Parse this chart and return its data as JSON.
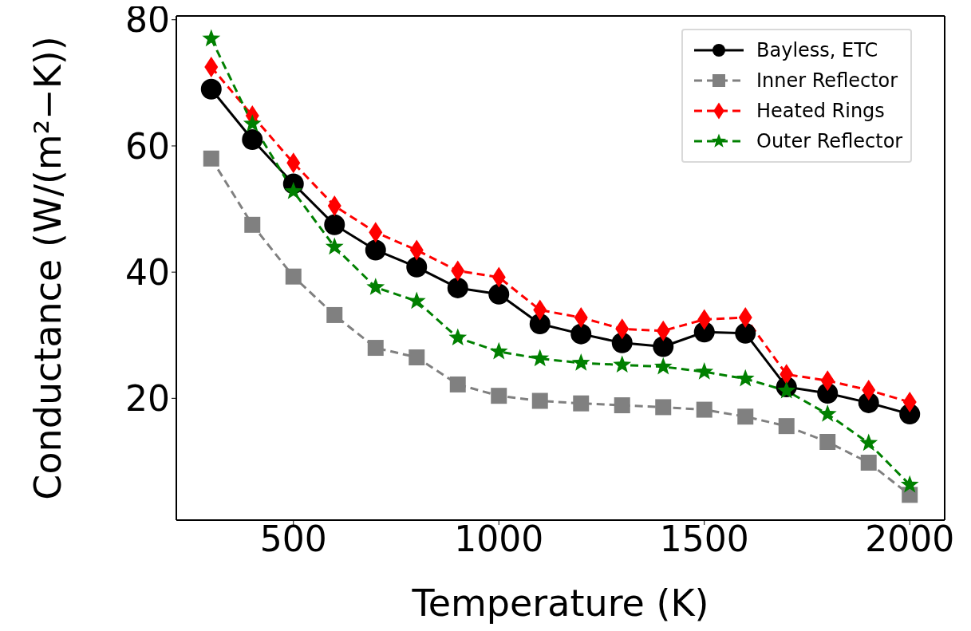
{
  "chart_data": {
    "type": "line",
    "xlabel": "Temperature (K)",
    "ylabel": "Conductance (W/(m²−K))",
    "x": [
      300,
      400,
      500,
      600,
      700,
      800,
      900,
      1000,
      1100,
      1200,
      1300,
      1400,
      1500,
      1600,
      1700,
      1800,
      1900,
      2000
    ],
    "series": [
      {
        "name": "Bayless, ETC",
        "color": "#000000",
        "marker": "circle",
        "line_style": "solid",
        "values": [
          69,
          61,
          54,
          47.5,
          43.5,
          40.8,
          37.5,
          36.5,
          31.8,
          30.2,
          28.8,
          28.2,
          30.5,
          30.3,
          21.8,
          20.8,
          19.3,
          17.5
        ]
      },
      {
        "name": "Inner Reflector",
        "color": "#808080",
        "marker": "square",
        "line_style": "dashed",
        "values": [
          58,
          47.5,
          39.3,
          33.2,
          28,
          26.5,
          22.2,
          20.4,
          19.6,
          19.2,
          18.9,
          18.6,
          18.2,
          17.1,
          15.6,
          13.1,
          9.8,
          4.7
        ]
      },
      {
        "name": "Heated Rings",
        "color": "#ff0000",
        "marker": "diamond",
        "line_style": "dashed",
        "values": [
          72.5,
          64.8,
          57.3,
          50.5,
          46.3,
          43.5,
          40.2,
          39.2,
          34,
          32.8,
          31,
          30.7,
          32.5,
          32.8,
          23.8,
          22.8,
          21.3,
          19.4
        ]
      },
      {
        "name": "Outer Reflector",
        "color": "#008000",
        "marker": "star",
        "line_style": "dashed",
        "values": [
          77,
          63.5,
          52.8,
          44,
          37.6,
          35.4,
          29.6,
          27.4,
          26.3,
          25.6,
          25.3,
          25,
          24.2,
          23.1,
          21.2,
          17.5,
          12.9,
          6.3
        ]
      }
    ],
    "xlim": [
      215,
      2085
    ],
    "ylim": [
      0.7,
      80.6
    ],
    "xticks": [
      500,
      1000,
      1500,
      2000
    ],
    "yticks": [
      20,
      40,
      60,
      80
    ],
    "grid": false,
    "legend": "top right"
  }
}
